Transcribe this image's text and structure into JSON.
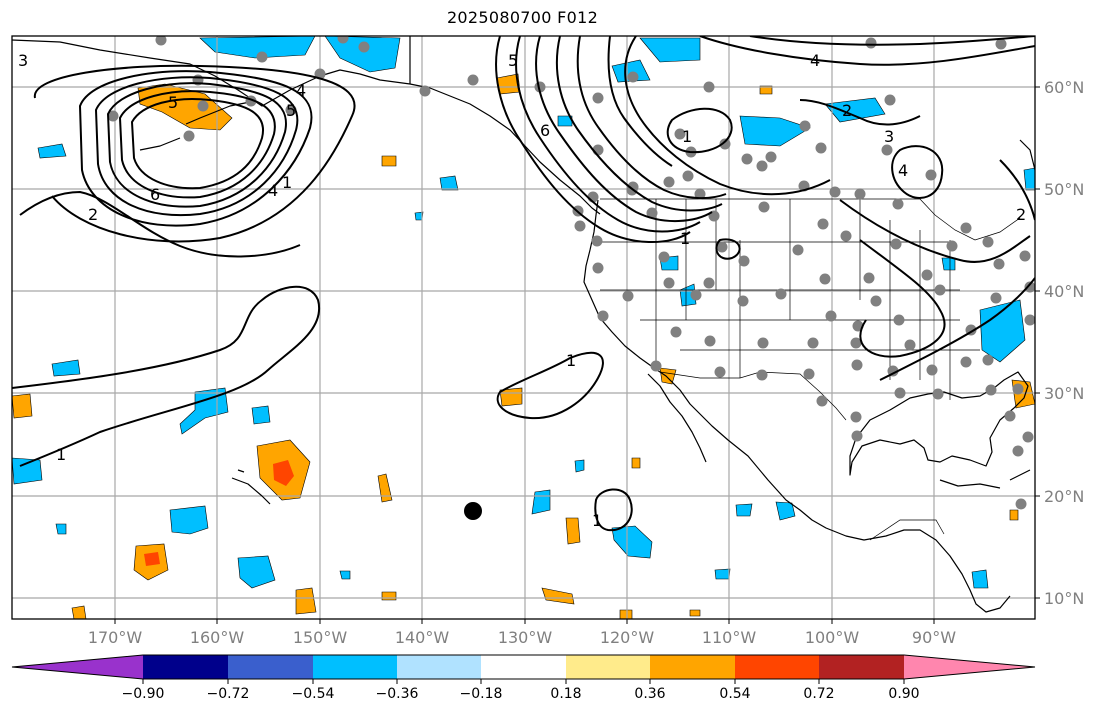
{
  "map": {
    "title": "2025080700 F012",
    "lon_labels": [
      "170°W",
      "160°W",
      "150°W",
      "140°W",
      "130°W",
      "120°W",
      "110°W",
      "100°W",
      "90°W"
    ],
    "lat_labels": [
      "60°N",
      "50°N",
      "40°N",
      "30°N",
      "20°N",
      "10°N"
    ],
    "contour_labels": [
      "3",
      "5",
      "5",
      "6",
      "4",
      "4",
      "1",
      "2",
      "5",
      "6",
      "1",
      "1",
      "1",
      "4",
      "2",
      "3",
      "4",
      "1",
      "2",
      "1"
    ]
  },
  "colorbar": {
    "ticks": [
      "−0.90",
      "−0.72",
      "−0.54",
      "−0.36",
      "−0.18",
      "0.18",
      "0.36",
      "0.54",
      "0.72",
      "0.90"
    ],
    "colors": [
      "#9932cc",
      "#00008b",
      "#3a5fcd",
      "#00bfff",
      "#b0e2ff",
      "#ffffff",
      "#ffeb8b",
      "#ffa500",
      "#ff4500",
      "#b22222",
      "#ff86ae"
    ]
  },
  "colors": {
    "neg_fill": "#00bfff",
    "pos_fill": "#ffa500",
    "strong_pos_fill": "#ff4500",
    "station": "#808080",
    "grid": "#a8a8a8"
  }
}
